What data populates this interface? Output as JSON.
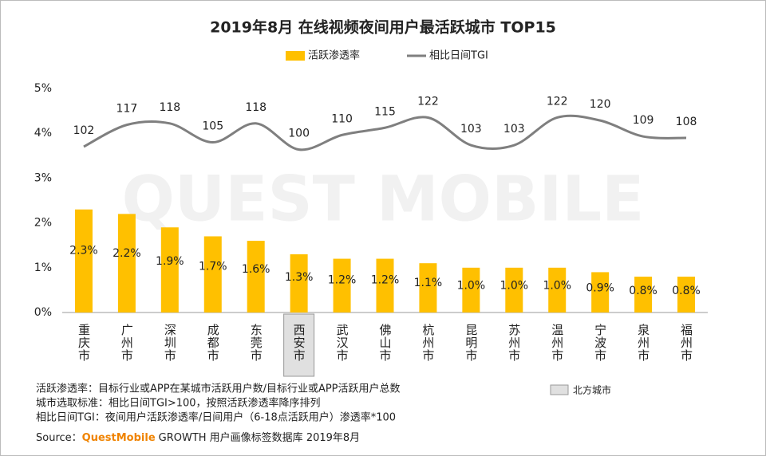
{
  "chart_data": {
    "type": "bar",
    "title": "2019年8月 在线视频夜间用户最活跃城市 TOP15",
    "watermark": "QUEST MOBILE",
    "categories": [
      "重庆市",
      "广州市",
      "深圳市",
      "成都市",
      "东莞市",
      "西安市",
      "武汉市",
      "佛山市",
      "杭州市",
      "昆明市",
      "苏州市",
      "温州市",
      "宁波市",
      "泉州市",
      "福州市"
    ],
    "series": [
      {
        "name": "活跃渗透率",
        "type": "bar",
        "color": "#ffc000",
        "values": [
          2.3,
          2.2,
          1.9,
          1.7,
          1.6,
          1.3,
          1.2,
          1.2,
          1.1,
          1.0,
          1.0,
          1.0,
          0.9,
          0.8,
          0.8
        ],
        "value_labels": [
          "2.3%",
          "2.2%",
          "1.9%",
          "1.7%",
          "1.6%",
          "1.3%",
          "1.2%",
          "1.2%",
          "1.1%",
          "1.0%",
          "1.0%",
          "1.0%",
          "0.9%",
          "0.8%",
          "0.8%"
        ]
      },
      {
        "name": "相比日间TGI",
        "type": "line",
        "axis": "y2",
        "color": "#7f7f7f",
        "values": [
          102,
          117,
          118,
          105,
          118,
          100,
          110,
          115,
          122,
          103,
          103,
          122,
          120,
          109,
          108
        ]
      }
    ],
    "ylim": [
      0,
      5
    ],
    "yticks": [
      {
        "value": 0,
        "label": "0%"
      },
      {
        "value": 1,
        "label": "1%"
      },
      {
        "value": 2,
        "label": "2%"
      },
      {
        "value": 3,
        "label": "3%"
      },
      {
        "value": 4,
        "label": "4%"
      },
      {
        "value": 5,
        "label": "5%"
      }
    ],
    "y2lim": [
      -12,
      142
    ],
    "highlighted_category": "西安市",
    "highlight_label": "北方城市",
    "notes": [
      "活跃渗透率：目标行业或APP在某城市活跃用户数/目标行业或APP活跃用户总数",
      "城市选取标准：相比日间TGI>100，按照活跃渗透率降序排列",
      "相比日间TGI：夜间用户活跃渗透率/日间用户（6-18点活跃用户）渗透率*100"
    ],
    "source": {
      "prefix": "Source：",
      "brand": "QuestMobile",
      "text": "GROWTH 用户画像标签数据库 2019年8月"
    }
  }
}
